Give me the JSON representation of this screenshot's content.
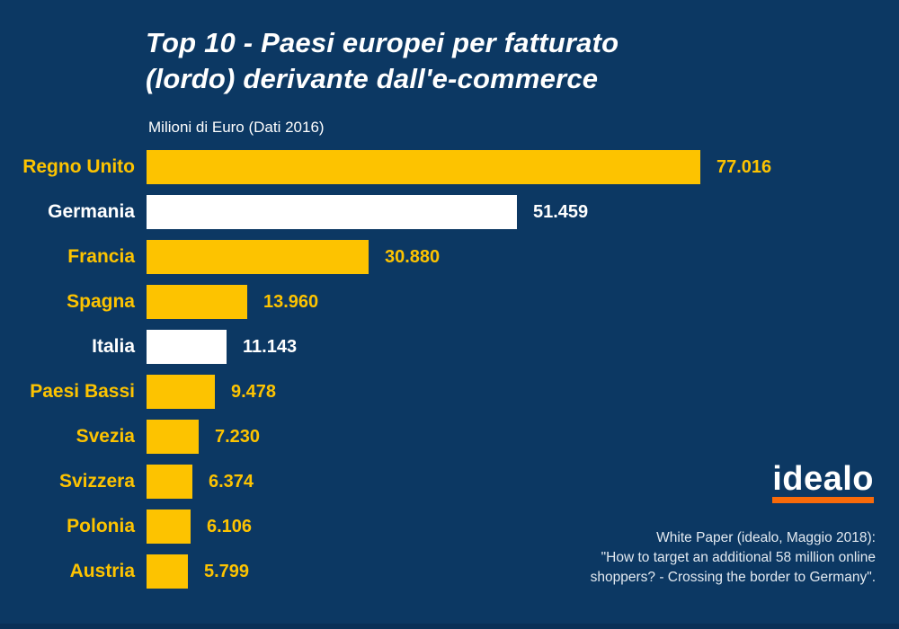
{
  "title": {
    "line1": "Top 10 - Paesi europei per fatturato",
    "line2": "(lordo) derivante dall'e-commerce"
  },
  "subtitle": "Milioni di Euro (Dati 2016)",
  "chart_data": {
    "type": "bar",
    "orientation": "horizontal",
    "title": "Top 10 - Paesi europei per fatturato (lordo) derivante dall'e-commerce",
    "xlabel": "Milioni di Euro (Dati 2016)",
    "categories": [
      "Regno Unito",
      "Germania",
      "Francia",
      "Spagna",
      "Italia",
      "Paesi Bassi",
      "Svezia",
      "Svizzera",
      "Polonia",
      "Austria"
    ],
    "values": [
      77016,
      51459,
      30880,
      13960,
      11143,
      9478,
      7230,
      6374,
      6106,
      5799
    ],
    "value_labels": [
      "77.016",
      "51.459",
      "30.880",
      "13.960",
      "11.143",
      "9.478",
      "7.230",
      "6.374",
      "6.106",
      "5.799"
    ],
    "bar_colors": [
      "#fdc300",
      "#ffffff",
      "#fdc300",
      "#fdc300",
      "#ffffff",
      "#fdc300",
      "#fdc300",
      "#fdc300",
      "#fdc300",
      "#fdc300"
    ],
    "xlim": [
      0,
      77016
    ],
    "grid": false,
    "legend": "none",
    "data_labels": "outside-end"
  },
  "branding": {
    "logo_text": "idealo"
  },
  "footer": {
    "line1": "White Paper (idealo, Maggio 2018):",
    "line2": "\"How to target an additional 58 million online",
    "line3": "shoppers? - Crossing the border to Germany\"."
  },
  "colors": {
    "background": "#0c3863",
    "bar_yellow": "#fdc300",
    "bar_white": "#ffffff",
    "title_text": "#ffffff",
    "footer_text": "#e3eaf1",
    "logo_underline": "#f86a0a"
  }
}
